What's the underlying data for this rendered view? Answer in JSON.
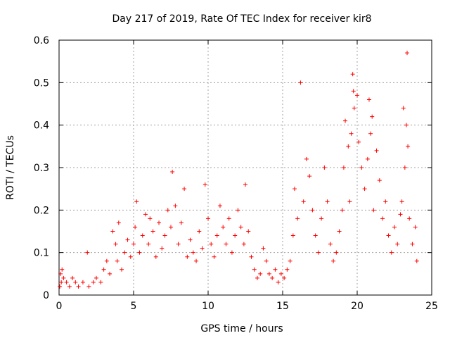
{
  "chart_data": {
    "type": "scatter",
    "title": "Day 217 of 2019, Rate Of TEC Index for receiver kir8",
    "xlabel": "GPS time / hours",
    "ylabel": "ROTI / TECUs",
    "xlim": [
      0,
      25
    ],
    "ylim": [
      0,
      0.6
    ],
    "x_ticks": [
      "0",
      "5",
      "10",
      "15",
      "20",
      "25"
    ],
    "y_ticks": [
      "0",
      "0.1",
      "0.2",
      "0.3",
      "0.4",
      "0.5",
      "0.6"
    ],
    "grid": true,
    "marker": "+",
    "color": "#ff0000",
    "series": [
      {
        "name": "ROTI",
        "points": [
          [
            0.05,
            0.02
          ],
          [
            0.1,
            0.05
          ],
          [
            0.15,
            0.03
          ],
          [
            0.2,
            0.06
          ],
          [
            0.3,
            0.04
          ],
          [
            0.5,
            0.03
          ],
          [
            0.7,
            0.02
          ],
          [
            0.9,
            0.04
          ],
          [
            1.1,
            0.03
          ],
          [
            1.3,
            0.02
          ],
          [
            1.6,
            0.03
          ],
          [
            1.9,
            0.1
          ],
          [
            2.0,
            0.02
          ],
          [
            2.3,
            0.03
          ],
          [
            2.5,
            0.04
          ],
          [
            2.8,
            0.03
          ],
          [
            3.0,
            0.06
          ],
          [
            3.2,
            0.08
          ],
          [
            3.4,
            0.05
          ],
          [
            3.6,
            0.15
          ],
          [
            3.8,
            0.12
          ],
          [
            3.9,
            0.08
          ],
          [
            4.0,
            0.17
          ],
          [
            4.2,
            0.06
          ],
          [
            4.4,
            0.1
          ],
          [
            4.6,
            0.13
          ],
          [
            4.8,
            0.09
          ],
          [
            5.0,
            0.12
          ],
          [
            5.1,
            0.16
          ],
          [
            5.2,
            0.22
          ],
          [
            5.4,
            0.1
          ],
          [
            5.6,
            0.14
          ],
          [
            5.8,
            0.19
          ],
          [
            6.0,
            0.12
          ],
          [
            6.1,
            0.18
          ],
          [
            6.3,
            0.15
          ],
          [
            6.5,
            0.09
          ],
          [
            6.7,
            0.17
          ],
          [
            6.9,
            0.11
          ],
          [
            7.1,
            0.14
          ],
          [
            7.3,
            0.2
          ],
          [
            7.5,
            0.16
          ],
          [
            7.6,
            0.29
          ],
          [
            7.8,
            0.21
          ],
          [
            8.0,
            0.12
          ],
          [
            8.2,
            0.17
          ],
          [
            8.4,
            0.25
          ],
          [
            8.6,
            0.09
          ],
          [
            8.8,
            0.13
          ],
          [
            9.0,
            0.1
          ],
          [
            9.2,
            0.08
          ],
          [
            9.4,
            0.15
          ],
          [
            9.6,
            0.11
          ],
          [
            9.8,
            0.26
          ],
          [
            10.0,
            0.18
          ],
          [
            10.2,
            0.12
          ],
          [
            10.4,
            0.09
          ],
          [
            10.6,
            0.14
          ],
          [
            10.8,
            0.21
          ],
          [
            11.0,
            0.16
          ],
          [
            11.2,
            0.12
          ],
          [
            11.4,
            0.18
          ],
          [
            11.6,
            0.1
          ],
          [
            11.8,
            0.14
          ],
          [
            12.0,
            0.2
          ],
          [
            12.2,
            0.16
          ],
          [
            12.4,
            0.12
          ],
          [
            12.5,
            0.26
          ],
          [
            12.7,
            0.15
          ],
          [
            12.9,
            0.09
          ],
          [
            13.1,
            0.06
          ],
          [
            13.3,
            0.04
          ],
          [
            13.5,
            0.05
          ],
          [
            13.7,
            0.11
          ],
          [
            13.9,
            0.08
          ],
          [
            14.1,
            0.05
          ],
          [
            14.3,
            0.04
          ],
          [
            14.5,
            0.06
          ],
          [
            14.7,
            0.03
          ],
          [
            14.9,
            0.05
          ],
          [
            15.1,
            0.04
          ],
          [
            15.3,
            0.06
          ],
          [
            15.5,
            0.08
          ],
          [
            15.7,
            0.14
          ],
          [
            15.8,
            0.25
          ],
          [
            16.0,
            0.18
          ],
          [
            16.2,
            0.5
          ],
          [
            16.4,
            0.22
          ],
          [
            16.6,
            0.32
          ],
          [
            16.8,
            0.28
          ],
          [
            17.0,
            0.2
          ],
          [
            17.2,
            0.14
          ],
          [
            17.4,
            0.1
          ],
          [
            17.6,
            0.18
          ],
          [
            17.8,
            0.3
          ],
          [
            18.0,
            0.22
          ],
          [
            18.2,
            0.12
          ],
          [
            18.4,
            0.08
          ],
          [
            18.6,
            0.1
          ],
          [
            18.8,
            0.15
          ],
          [
            19.0,
            0.2
          ],
          [
            19.1,
            0.3
          ],
          [
            19.2,
            0.41
          ],
          [
            19.4,
            0.35
          ],
          [
            19.5,
            0.22
          ],
          [
            19.6,
            0.38
          ],
          [
            19.7,
            0.52
          ],
          [
            19.75,
            0.48
          ],
          [
            19.8,
            0.44
          ],
          [
            20.0,
            0.47
          ],
          [
            20.1,
            0.36
          ],
          [
            20.3,
            0.3
          ],
          [
            20.5,
            0.25
          ],
          [
            20.7,
            0.32
          ],
          [
            20.8,
            0.46
          ],
          [
            20.9,
            0.38
          ],
          [
            21.0,
            0.42
          ],
          [
            21.1,
            0.2
          ],
          [
            21.3,
            0.34
          ],
          [
            21.5,
            0.27
          ],
          [
            21.7,
            0.18
          ],
          [
            21.9,
            0.22
          ],
          [
            22.1,
            0.14
          ],
          [
            22.3,
            0.1
          ],
          [
            22.5,
            0.16
          ],
          [
            22.7,
            0.12
          ],
          [
            22.9,
            0.19
          ],
          [
            23.0,
            0.22
          ],
          [
            23.1,
            0.44
          ],
          [
            23.2,
            0.3
          ],
          [
            23.3,
            0.4
          ],
          [
            23.35,
            0.57
          ],
          [
            23.4,
            0.35
          ],
          [
            23.5,
            0.18
          ],
          [
            23.7,
            0.12
          ],
          [
            23.9,
            0.16
          ],
          [
            24.0,
            0.08
          ]
        ]
      }
    ]
  }
}
